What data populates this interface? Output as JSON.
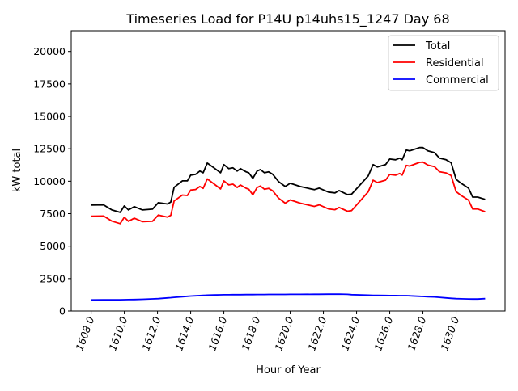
{
  "chart_data": {
    "type": "line",
    "title": "Timeseries Load for P14U p14uhs15_1247  Day 68",
    "xlabel": "Hour of Year",
    "ylabel": "kW total",
    "xlim": [
      1606.8,
      1632.95
    ],
    "ylim": [
      0,
      21600
    ],
    "xticks": [
      1608,
      1610,
      1612,
      1614,
      1616,
      1618,
      1620,
      1622,
      1624,
      1626,
      1628,
      1630
    ],
    "xtick_labels": [
      "1608.0",
      "1610.0",
      "1612.0",
      "1614.0",
      "1616.0",
      "1618.0",
      "1620.0",
      "1622.0",
      "1624.0",
      "1626.0",
      "1628.0",
      "1630.0"
    ],
    "yticks": [
      0,
      2500,
      5000,
      7500,
      10000,
      12500,
      15000,
      17500,
      20000
    ],
    "ytick_labels": [
      "0",
      "2500",
      "5000",
      "7500",
      "10000",
      "12500",
      "15000",
      "17500",
      "20000"
    ],
    "grid": false,
    "legend_position": "top-right",
    "x": [
      1608.0,
      1608.75,
      1609.25,
      1609.75,
      1610.0,
      1610.25,
      1610.6,
      1611.1,
      1611.7,
      1612.05,
      1612.6,
      1612.8,
      1613.0,
      1613.5,
      1613.8,
      1614.0,
      1614.3,
      1614.55,
      1614.75,
      1615.0,
      1615.4,
      1615.8,
      1616.0,
      1616.3,
      1616.55,
      1616.8,
      1617.0,
      1617.35,
      1617.5,
      1617.75,
      1618.0,
      1618.2,
      1618.45,
      1618.7,
      1618.95,
      1619.3,
      1619.7,
      1620.0,
      1620.6,
      1621.45,
      1621.75,
      1622.3,
      1622.7,
      1622.95,
      1623.45,
      1623.7,
      1624.7,
      1625.0,
      1625.25,
      1625.75,
      1626.0,
      1626.35,
      1626.6,
      1626.75,
      1627.0,
      1627.2,
      1627.8,
      1628.0,
      1628.3,
      1628.7,
      1629.0,
      1629.4,
      1629.7,
      1630.0,
      1630.3,
      1630.75,
      1631.0,
      1631.3,
      1631.75
    ],
    "series": [
      {
        "name": "Total",
        "color": "#000000",
        "values": [
          8160,
          8180,
          7790,
          7600,
          8100,
          7790,
          8040,
          7790,
          7850,
          8350,
          8250,
          8400,
          9530,
          10030,
          10030,
          10470,
          10530,
          10780,
          10650,
          11400,
          11030,
          10650,
          11280,
          10970,
          11030,
          10780,
          10970,
          10720,
          10650,
          10220,
          10780,
          10900,
          10650,
          10720,
          10530,
          9970,
          9590,
          9840,
          9590,
          9350,
          9470,
          9160,
          9100,
          9280,
          8970,
          9000,
          10400,
          11280,
          11100,
          11280,
          11710,
          11650,
          11780,
          11650,
          12400,
          12340,
          12590,
          12590,
          12340,
          12200,
          11780,
          11650,
          11420,
          10150,
          9840,
          9470,
          8780,
          8780,
          8600
        ]
      },
      {
        "name": "Residential",
        "color": "#ff0000",
        "values": [
          7310,
          7320,
          6930,
          6735,
          7230,
          6915,
          7155,
          6885,
          6915,
          7395,
          7240,
          7370,
          8480,
          8930,
          8900,
          9320,
          9360,
          9590,
          9450,
          10180,
          9800,
          9405,
          10030,
          9718,
          9775,
          9520,
          9710,
          9458,
          9386,
          8954,
          9510,
          9630,
          9378,
          9447,
          9255,
          8694,
          8312,
          8560,
          8307,
          8063,
          8182,
          7868,
          7805,
          7980,
          7690,
          7740,
          9180,
          10080,
          9900,
          10085,
          10520,
          10462,
          10595,
          10467,
          11220,
          11170,
          11455,
          11470,
          11240,
          11120,
          10730,
          10640,
          10440,
          9200,
          8900,
          8540,
          7860,
          7860,
          7650
        ]
      },
      {
        "name": "Commercial",
        "color": "#0000ff",
        "values": [
          850,
          860,
          860,
          865,
          870,
          875,
          885,
          905,
          935,
          955,
          1010,
          1030,
          1050,
          1100,
          1130,
          1150,
          1170,
          1190,
          1200,
          1220,
          1230,
          1245,
          1250,
          1252,
          1255,
          1258,
          1260,
          1262,
          1264,
          1266,
          1270,
          1270,
          1272,
          1273,
          1275,
          1276,
          1278,
          1280,
          1283,
          1287,
          1288,
          1292,
          1295,
          1300,
          1280,
          1260,
          1220,
          1200,
          1200,
          1195,
          1190,
          1188,
          1185,
          1183,
          1180,
          1170,
          1135,
          1120,
          1100,
          1080,
          1050,
          1010,
          980,
          950,
          940,
          930,
          920,
          920,
          950
        ]
      }
    ]
  }
}
